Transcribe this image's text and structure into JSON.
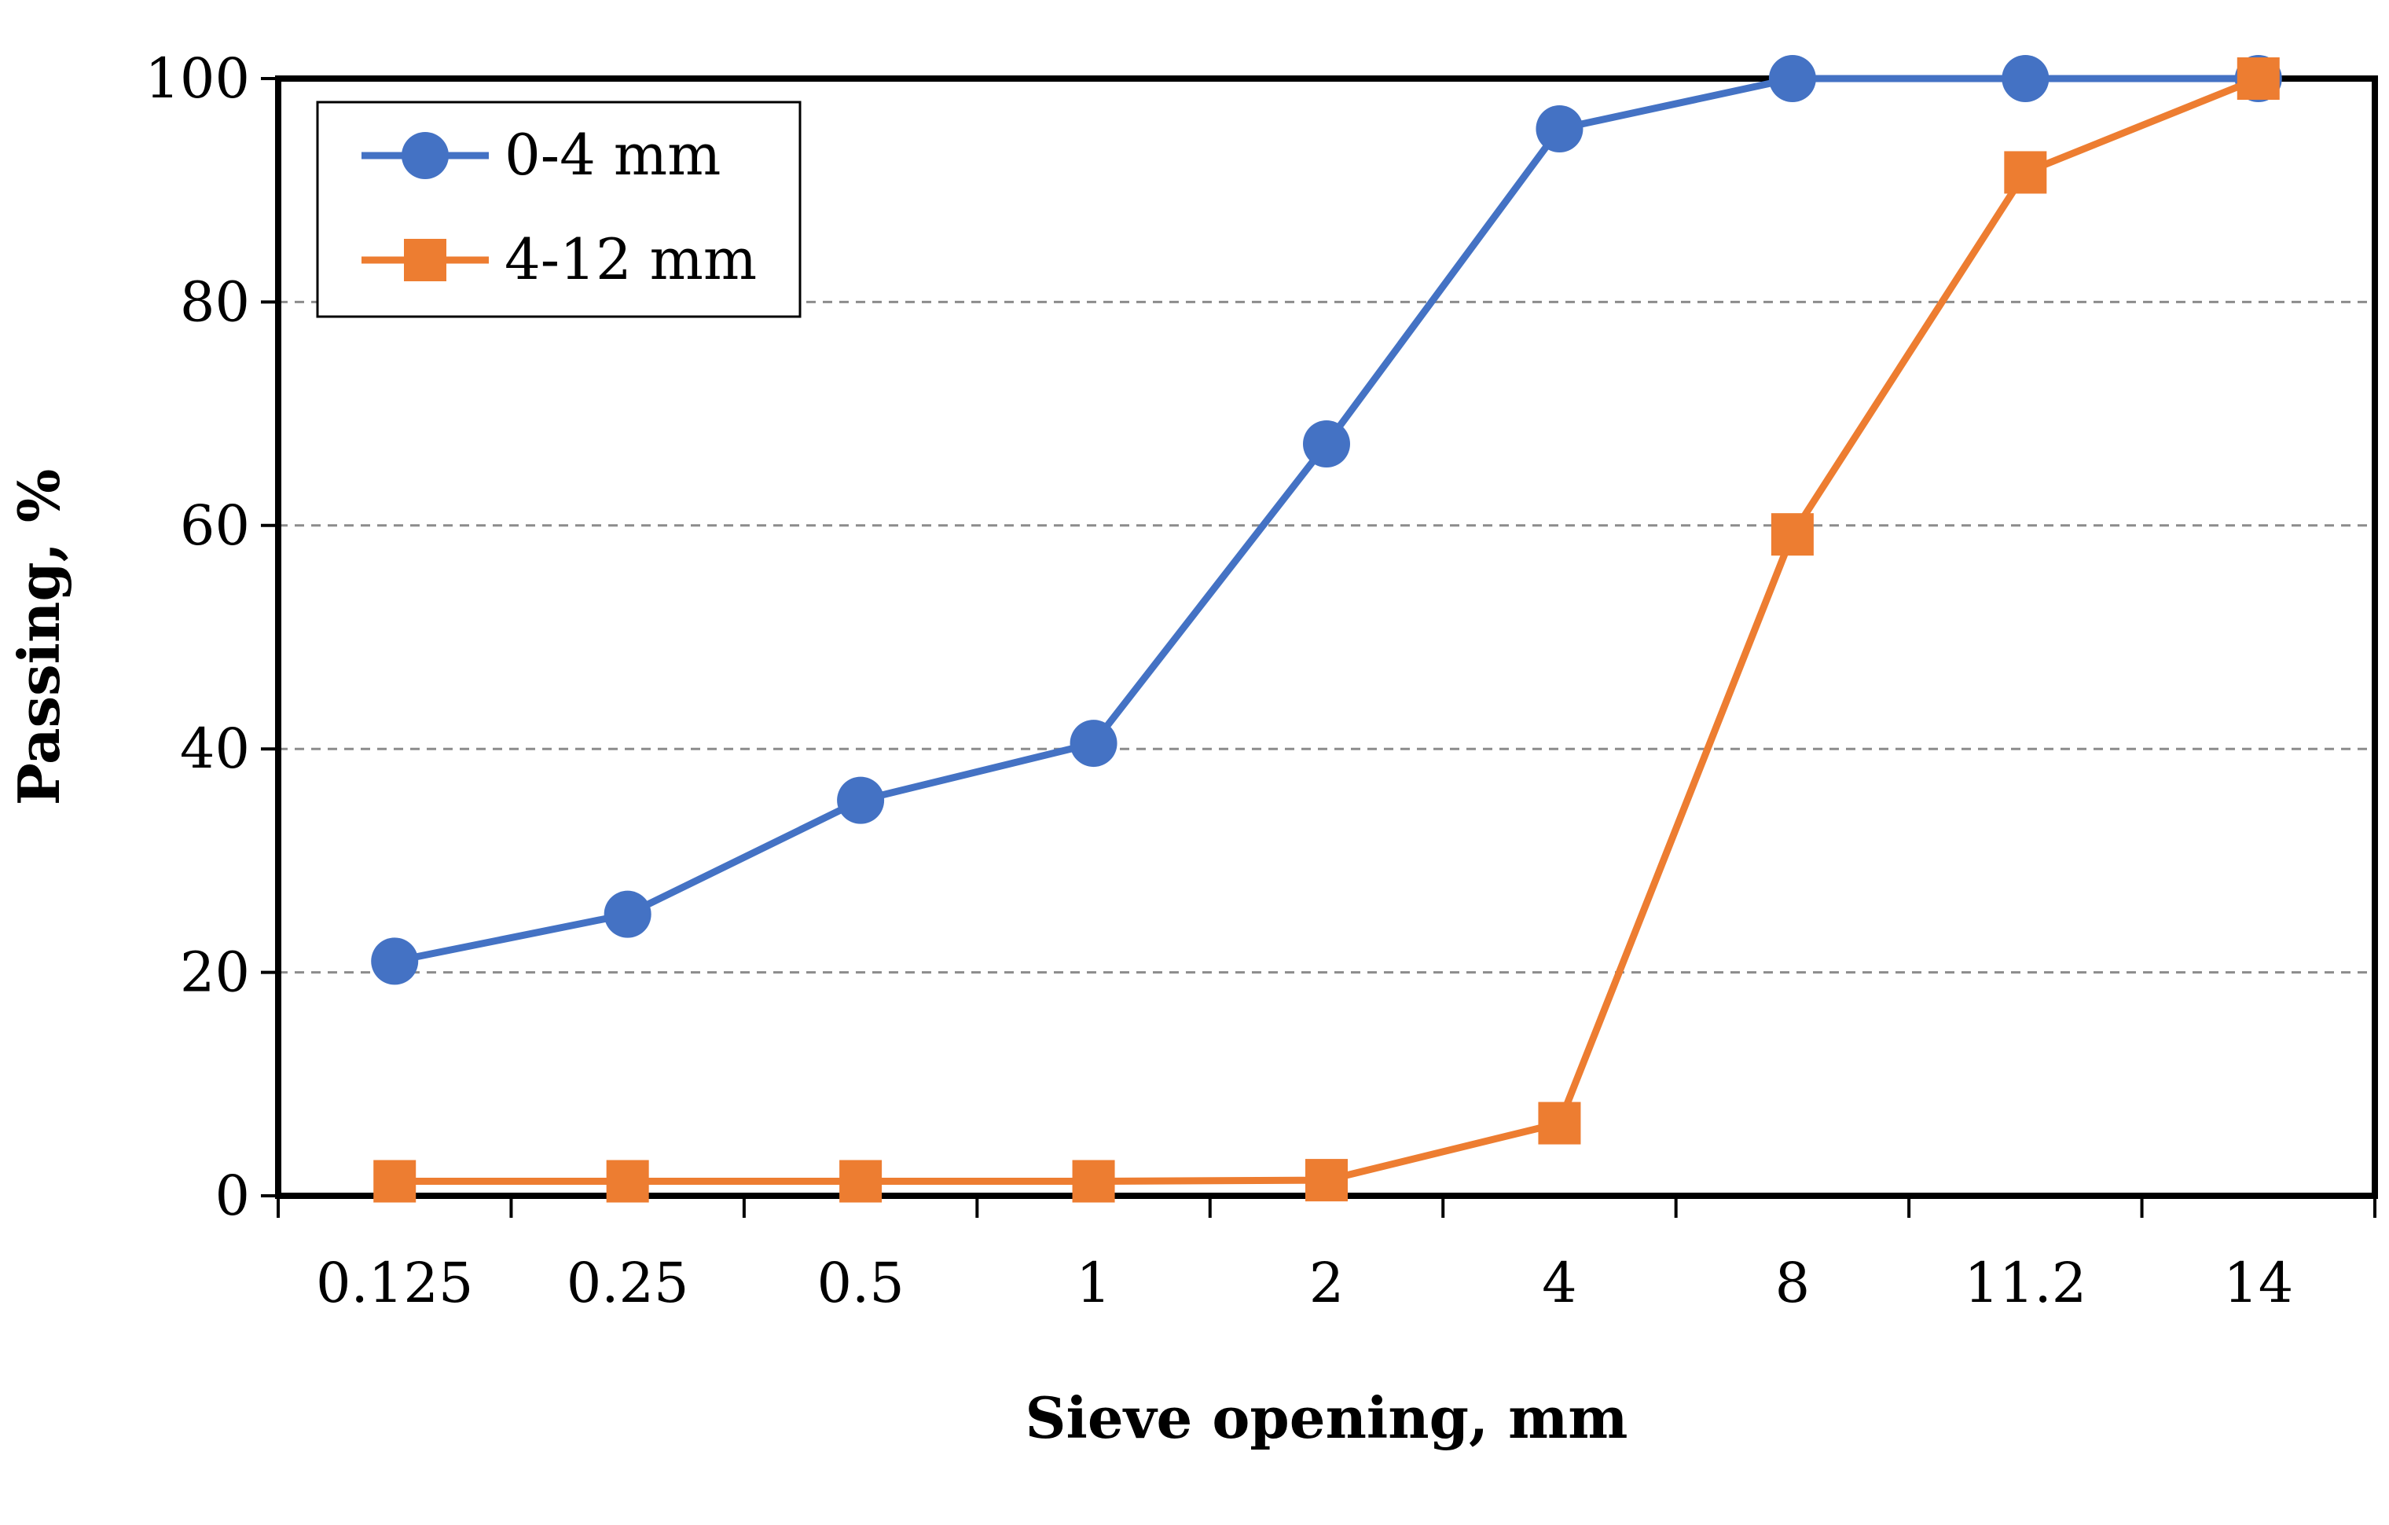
{
  "chart_data": {
    "type": "line",
    "xlabel": "Sieve opening, mm",
    "ylabel": "Passing, %",
    "categories": [
      "0.125",
      "0.25",
      "0.5",
      "1",
      "2",
      "4",
      "8",
      "11.2",
      "14"
    ],
    "ylim": [
      0,
      100
    ],
    "yticks": [
      "0",
      "20",
      "40",
      "60",
      "80",
      "100"
    ],
    "grid": "horizontal dashed",
    "legend_position": "top-left",
    "series": [
      {
        "name": "0-4 mm",
        "marker": "circle",
        "color": "#4472C4",
        "values": [
          21,
          25.2,
          35.4,
          40.5,
          67.3,
          95.5,
          100,
          100,
          100
        ]
      },
      {
        "name": "4-12 mm",
        "marker": "square",
        "color": "#ED7D31",
        "values": [
          1.3,
          1.3,
          1.3,
          1.3,
          1.4,
          6.5,
          59.2,
          91.6,
          100
        ]
      }
    ]
  }
}
